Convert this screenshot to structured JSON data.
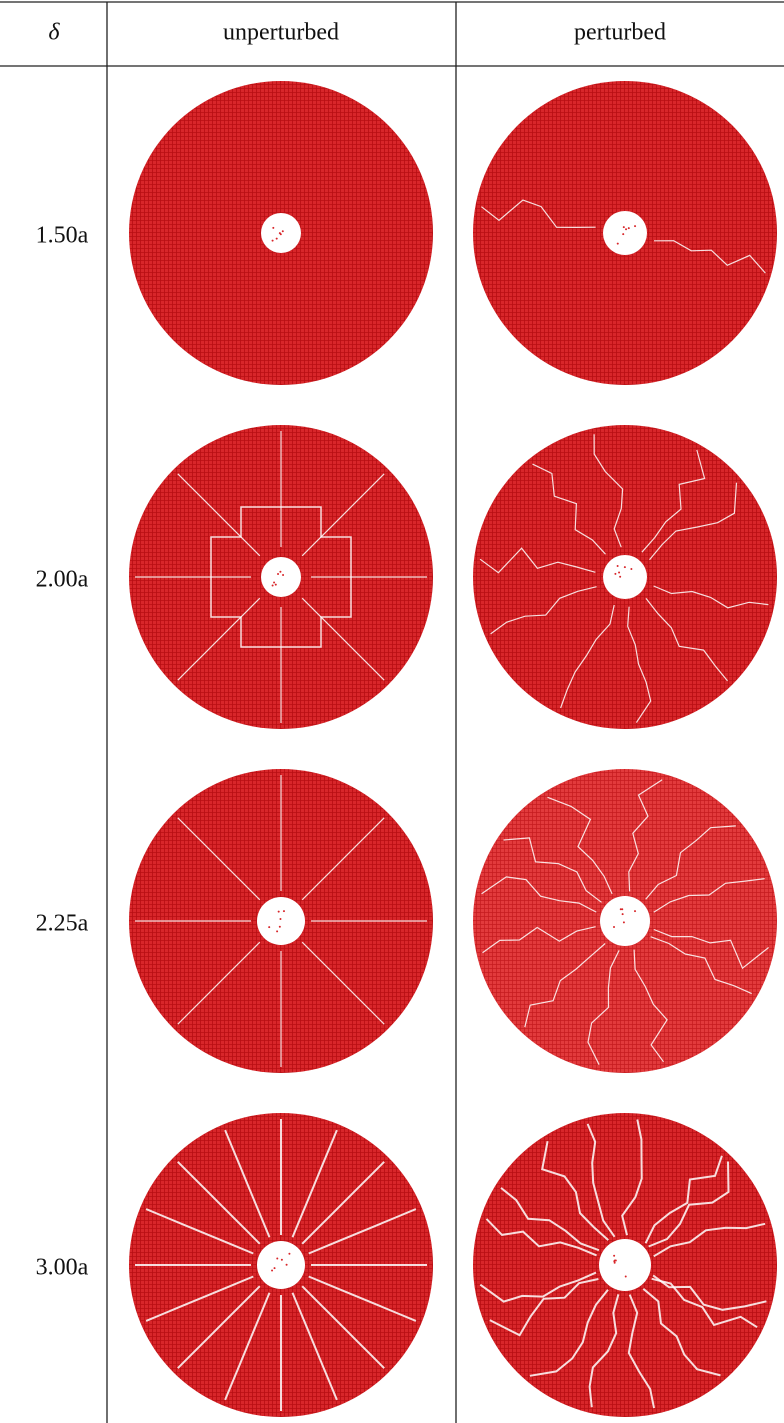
{
  "table": {
    "header": [
      "δ",
      "unperturbed",
      "perturbed"
    ],
    "rows": [
      [
        "1.50a"
      ],
      [
        "2.00a"
      ],
      [
        "2.25a"
      ],
      [
        "3.00a"
      ]
    ]
  }
}
